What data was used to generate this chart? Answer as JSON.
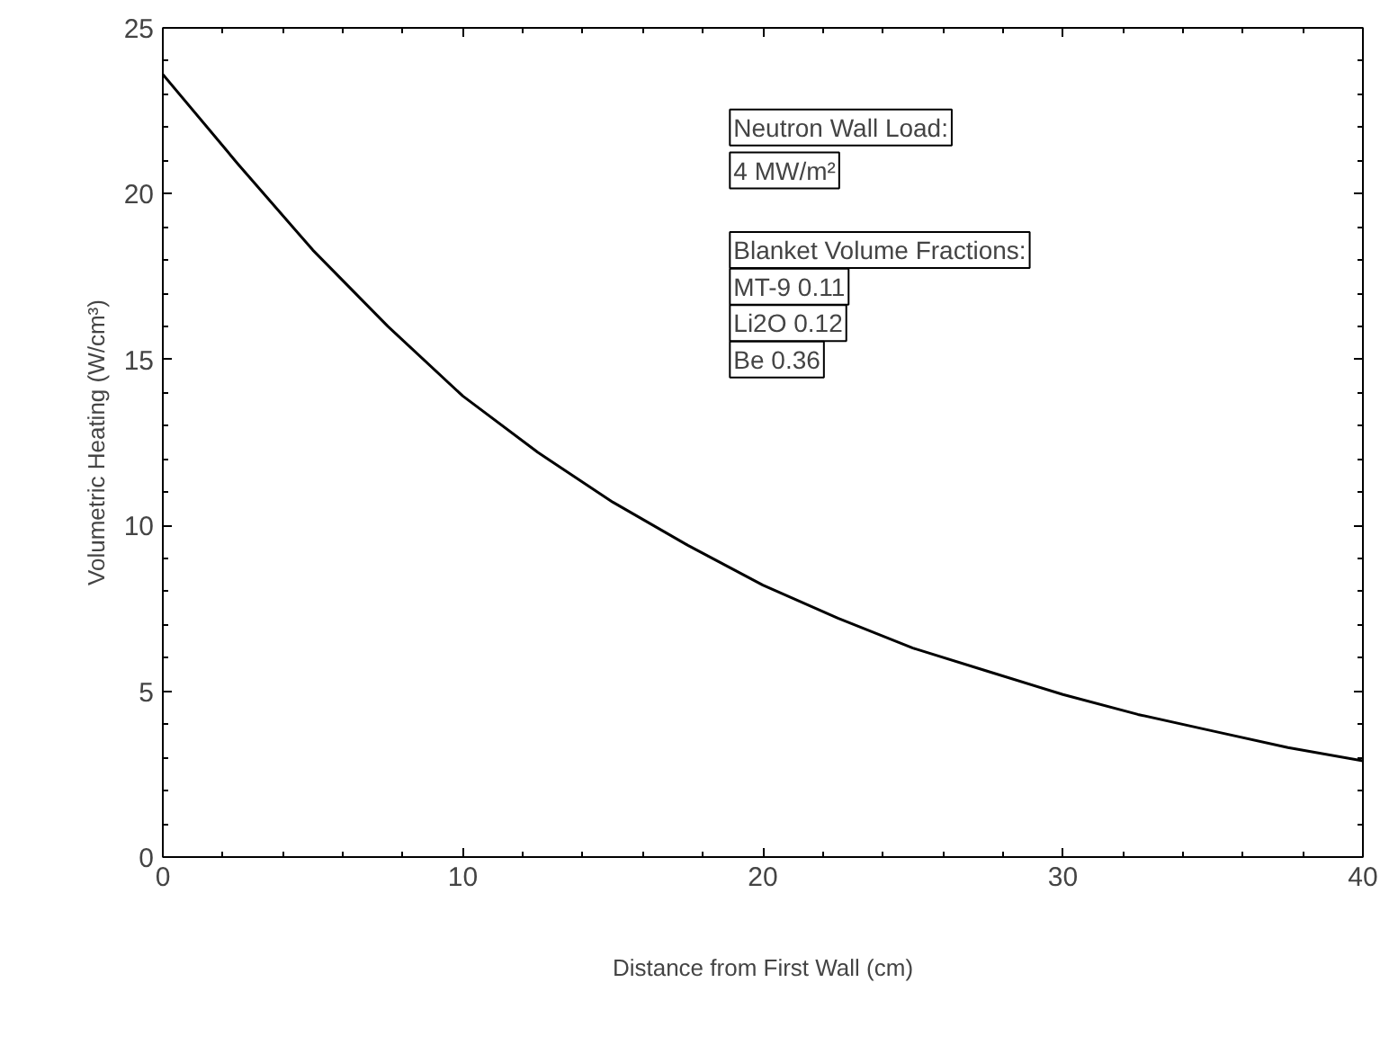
{
  "chart_data": {
    "type": "line",
    "xlabel": "Distance from First Wall (cm)",
    "ylabel": "Volumetric Heating (W/cm³)",
    "x": [
      0,
      2.5,
      5,
      7.5,
      10,
      12.5,
      15,
      17.5,
      20,
      22.5,
      25,
      27.5,
      30,
      32.5,
      35,
      37.5,
      40
    ],
    "series": [
      {
        "color": "#000000",
        "values": [
          23.6,
          20.9,
          18.3,
          16.0,
          13.9,
          12.2,
          10.7,
          9.4,
          8.2,
          7.2,
          6.3,
          5.6,
          4.9,
          4.3,
          3.8,
          3.3,
          2.9
        ]
      }
    ],
    "xlim": [
      0,
      40
    ],
    "ylim": [
      0,
      25
    ],
    "xticks": [
      0,
      10,
      20,
      30,
      40
    ],
    "yticks": [
      0,
      5,
      10,
      15,
      20,
      25
    ],
    "annotations": [
      "Neutron Wall Load:",
      "4 MW/m²",
      "Blanket Volume Fractions:",
      "MT-9 0.11",
      "Li2O 0.12",
      "Be 0.36"
    ],
    "grid": false,
    "marker": "none",
    "line_style": "solid"
  }
}
